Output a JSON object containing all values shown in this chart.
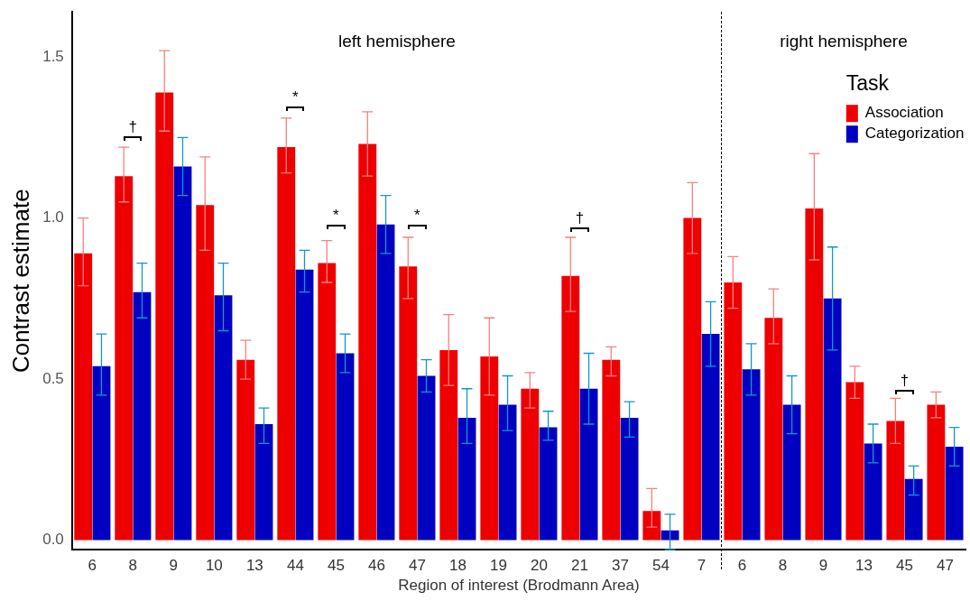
{
  "chart_data": {
    "type": "bar",
    "xlabel": "Region of interest (Brodmann Area)",
    "ylabel": "Contrast estimate",
    "legend_title": "Task",
    "legend": "top right",
    "grid": false,
    "categories": [
      "6",
      "8",
      "9",
      "10",
      "13",
      "44",
      "45",
      "46",
      "47",
      "18",
      "19",
      "20",
      "21",
      "37",
      "54",
      "7",
      "6",
      "8",
      "9",
      "13",
      "45",
      "47"
    ],
    "ylim": [
      -0.03,
      1.64
    ],
    "yticks": [
      {
        "value": 0,
        "label": "0.0"
      },
      {
        "value": 0.5,
        "label": "0.5"
      },
      {
        "value": 1,
        "label": "1.0"
      },
      {
        "value": 1.5,
        "label": "1.5"
      }
    ],
    "series": [
      {
        "name": "Association",
        "color": "#ee0000",
        "values": [
          0.89,
          1.13,
          1.39,
          1.04,
          0.56,
          1.22,
          0.86,
          1.23,
          0.85,
          0.59,
          0.57,
          0.47,
          0.82,
          0.56,
          0.09,
          1.0,
          0.8,
          0.69,
          1.03,
          0.49,
          0.37,
          0.42
        ],
        "errors": [
          [
            0.79,
            1.0
          ],
          [
            1.05,
            1.22
          ],
          [
            1.27,
            1.52
          ],
          [
            0.9,
            1.19
          ],
          [
            0.5,
            0.62
          ],
          [
            1.14,
            1.31
          ],
          [
            0.8,
            0.93
          ],
          [
            1.13,
            1.33
          ],
          [
            0.75,
            0.94
          ],
          [
            0.48,
            0.7
          ],
          [
            0.45,
            0.69
          ],
          [
            0.41,
            0.52
          ],
          [
            0.71,
            0.94
          ],
          [
            0.51,
            0.6
          ],
          [
            0.04,
            0.16
          ],
          [
            0.89,
            1.11
          ],
          [
            0.72,
            0.88
          ],
          [
            0.61,
            0.78
          ],
          [
            0.87,
            1.2
          ],
          [
            0.44,
            0.54
          ],
          [
            0.3,
            0.44
          ],
          [
            0.38,
            0.46
          ]
        ]
      },
      {
        "name": "Categorization",
        "color": "#0000c0",
        "values": [
          0.54,
          0.77,
          1.16,
          0.76,
          0.36,
          0.84,
          0.58,
          0.98,
          0.51,
          0.38,
          0.42,
          0.35,
          0.47,
          0.38,
          0.03,
          0.64,
          0.53,
          0.42,
          0.75,
          0.3,
          0.19,
          0.29
        ],
        "errors": [
          [
            0.45,
            0.64
          ],
          [
            0.69,
            0.86
          ],
          [
            1.07,
            1.25
          ],
          [
            0.65,
            0.86
          ],
          [
            0.3,
            0.41
          ],
          [
            0.77,
            0.9
          ],
          [
            0.52,
            0.64
          ],
          [
            0.89,
            1.07
          ],
          [
            0.46,
            0.56
          ],
          [
            0.3,
            0.47
          ],
          [
            0.34,
            0.51
          ],
          [
            0.31,
            0.4
          ],
          [
            0.36,
            0.58
          ],
          [
            0.32,
            0.43
          ],
          [
            -0.03,
            0.08
          ],
          [
            0.54,
            0.74
          ],
          [
            0.45,
            0.61
          ],
          [
            0.33,
            0.51
          ],
          [
            0.59,
            0.91
          ],
          [
            0.24,
            0.36
          ],
          [
            0.14,
            0.23
          ],
          [
            0.23,
            0.35
          ]
        ]
      }
    ],
    "annotations": [
      "left hemisphere",
      "right hemisphere",
      "†",
      "*",
      "*",
      "*",
      "†",
      "†"
    ]
  }
}
